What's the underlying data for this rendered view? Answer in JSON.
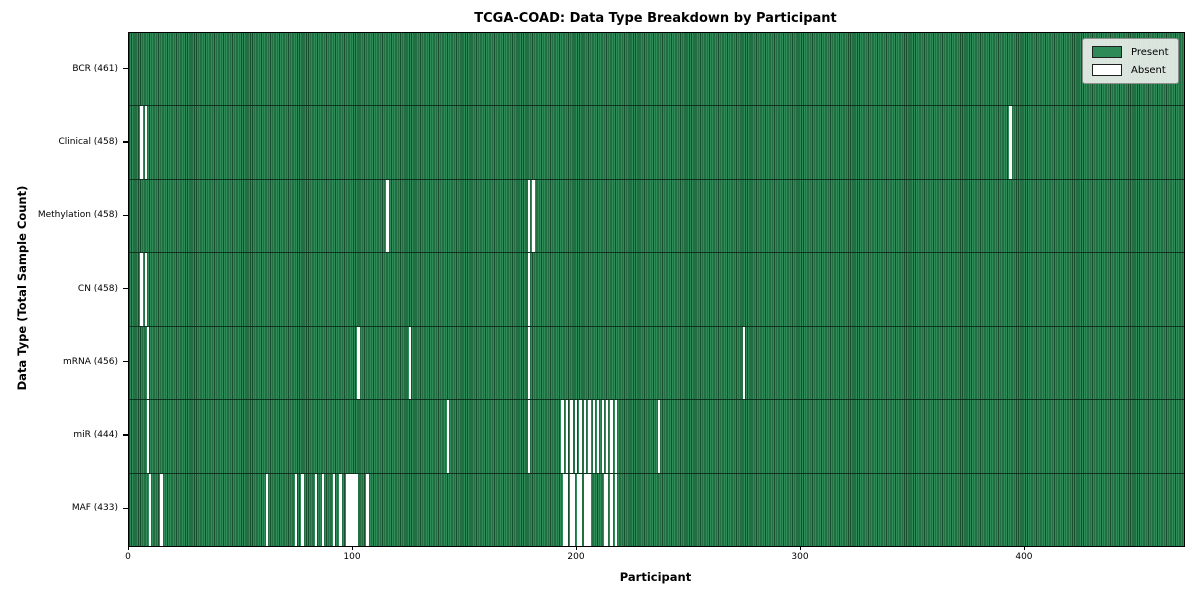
{
  "title": "TCGA-COAD: Data Type Breakdown by Participant",
  "xlabel": "Participant",
  "ylabel": "Data Type (Total Sample Count)",
  "legend": {
    "present_label": "Present",
    "absent_label": "Absent"
  },
  "colors": {
    "present": "#2e8b57",
    "present_edge": "#174f2e",
    "absent": "#ffffff",
    "legend_background": "#e9eee9",
    "plot_border": "#000000"
  },
  "chart_data": {
    "type": "heatmap",
    "title": "TCGA-COAD: Data Type Breakdown by Participant",
    "xlabel": "Participant",
    "ylabel": "Data Type (Total Sample Count)",
    "legend_entries": [
      "Present",
      "Absent"
    ],
    "legend_position": "upper right",
    "grid": false,
    "n_participants": 461,
    "xlim": [
      0,
      471
    ],
    "x_ticks": [
      0,
      100,
      200,
      300,
      400
    ],
    "rows": [
      {
        "name": "BCR",
        "label": "BCR (461)",
        "count": 461,
        "absent_participants": []
      },
      {
        "name": "Clinical",
        "label": "Clinical (458)",
        "count": 458,
        "absent_participants": [
          5,
          7,
          393
        ]
      },
      {
        "name": "Methylation",
        "label": "Methylation (458)",
        "count": 458,
        "absent_participants": [
          115,
          178,
          180
        ]
      },
      {
        "name": "CN",
        "label": "CN (458)",
        "count": 458,
        "absent_participants": [
          5,
          7,
          178
        ]
      },
      {
        "name": "mRNA",
        "label": "mRNA (456)",
        "count": 456,
        "absent_participants": [
          8,
          102,
          125,
          178,
          274
        ]
      },
      {
        "name": "miR",
        "label": "miR (444)",
        "count": 444,
        "absent_participants": [
          8,
          142,
          178,
          193,
          195,
          197,
          199,
          201,
          203,
          205,
          207,
          209,
          211,
          213,
          215,
          217,
          236
        ]
      },
      {
        "name": "MAF",
        "label": "MAF (433)",
        "count": 433,
        "absent_participants": [
          9,
          14,
          61,
          74,
          77,
          83,
          86,
          91,
          94,
          97,
          98,
          99,
          100,
          101,
          106,
          194,
          195,
          197,
          198,
          200,
          201,
          203,
          204,
          205,
          212,
          213,
          215,
          217
        ]
      }
    ]
  }
}
